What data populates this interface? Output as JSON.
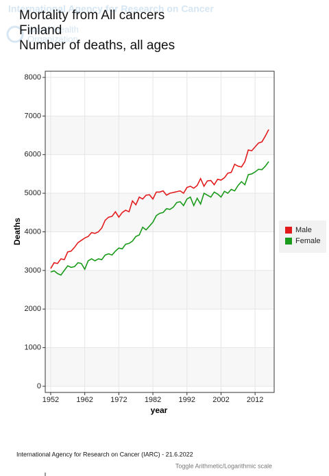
{
  "chart_data": {
    "type": "line",
    "watermark": [
      "International Agency for Research on Cancer",
      "World Health",
      "Organization"
    ],
    "title_lines": [
      "Mortality from All cancers",
      "Finland",
      "Number of deaths, all ages"
    ],
    "xlabel": "year",
    "ylabel": "Deaths",
    "x": [
      1952,
      1953,
      1954,
      1955,
      1956,
      1957,
      1958,
      1959,
      1960,
      1961,
      1962,
      1963,
      1964,
      1965,
      1966,
      1967,
      1968,
      1969,
      1970,
      1971,
      1972,
      1973,
      1974,
      1975,
      1976,
      1977,
      1978,
      1979,
      1980,
      1981,
      1982,
      1983,
      1984,
      1985,
      1986,
      1987,
      1988,
      1989,
      1990,
      1991,
      1992,
      1993,
      1994,
      1995,
      1996,
      1997,
      1998,
      1999,
      2000,
      2001,
      2002,
      2003,
      2004,
      2005,
      2006,
      2007,
      2008,
      2009,
      2010,
      2011,
      2012,
      2013,
      2014,
      2015,
      2016
    ],
    "series": [
      {
        "name": "Male",
        "color": "#e31a1c",
        "values": [
          3050,
          3200,
          3180,
          3300,
          3280,
          3480,
          3500,
          3600,
          3720,
          3780,
          3840,
          3880,
          3980,
          3960,
          4000,
          4100,
          4300,
          4380,
          4400,
          4520,
          4380,
          4500,
          4560,
          4520,
          4800,
          4700,
          4900,
          4850,
          4950,
          4960,
          4850,
          5030,
          5030,
          5060,
          4950,
          5000,
          5020,
          5040,
          5060,
          5000,
          5150,
          5180,
          5130,
          5200,
          5380,
          5180,
          5320,
          5330,
          5220,
          5360,
          5340,
          5400,
          5520,
          5540,
          5750,
          5700,
          5680,
          5820,
          6120,
          6100,
          6200,
          6300,
          6330,
          6480,
          6650
        ]
      },
      {
        "name": "Female",
        "color": "#1a9a1a",
        "values": [
          2960,
          2990,
          2920,
          2880,
          3000,
          3120,
          3080,
          3100,
          3200,
          3180,
          3030,
          3250,
          3300,
          3250,
          3300,
          3280,
          3400,
          3430,
          3400,
          3500,
          3580,
          3560,
          3680,
          3700,
          3760,
          3880,
          3920,
          4120,
          4050,
          4150,
          4250,
          4420,
          4480,
          4500,
          4600,
          4580,
          4640,
          4760,
          4780,
          4680,
          4850,
          4900,
          4680,
          4870,
          4720,
          5000,
          4950,
          4900,
          5030,
          4980,
          4900,
          5050,
          5000,
          5100,
          5060,
          5200,
          5300,
          5220,
          5480,
          5500,
          5550,
          5620,
          5610,
          5700,
          5820
        ]
      }
    ],
    "xlim": [
      1950.4,
      2017.6
    ],
    "xticks": [
      1952,
      1962,
      1972,
      1982,
      1992,
      2002,
      2012
    ],
    "ylim": [
      -160,
      8160
    ],
    "yticks": [
      0,
      1000,
      2000,
      3000,
      4000,
      5000,
      6000,
      7000,
      8000
    ],
    "grid": true,
    "legend": "right"
  },
  "footer": {
    "source": "International Agency for Research on Cancer (IARC) - 21.6.2022",
    "toggle": "Toggle Arithmetic/Logarithmic scale"
  }
}
